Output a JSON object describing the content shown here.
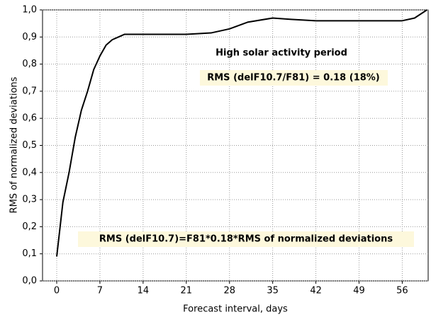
{
  "chart_data": {
    "type": "line",
    "x_label": "Forecast interval, days",
    "y_label": "RMS of normalized deviations",
    "annotations": [
      "High solar activity period",
      "RMS (delF10.7/F81) = 0.18 (18%)",
      "RMS (delF10.7)=F81*0.18*RMS of normalized deviations"
    ],
    "x": [
      0,
      1,
      2,
      3,
      4,
      5,
      6,
      7,
      8,
      9,
      10,
      11,
      14,
      21,
      25,
      28,
      31,
      35,
      38,
      42,
      49,
      56,
      58,
      60
    ],
    "values": [
      0.09,
      0.29,
      0.4,
      0.53,
      0.63,
      0.7,
      0.78,
      0.83,
      0.87,
      0.89,
      0.9,
      0.91,
      0.91,
      0.91,
      0.915,
      0.93,
      0.955,
      0.97,
      0.965,
      0.96,
      0.96,
      0.96,
      0.97,
      1.0
    ],
    "color": "#000000",
    "xlim": [
      -2.3,
      60.2
    ],
    "ylim": [
      0,
      1
    ],
    "xticks": [
      0,
      7,
      14,
      21,
      28,
      35,
      42,
      49,
      56
    ],
    "yticks": [
      {
        "value": 0,
        "label": "0,0"
      },
      {
        "value": 0.1,
        "label": "0,1"
      },
      {
        "value": 0.2,
        "label": "0,2"
      },
      {
        "value": 0.3,
        "label": "0,3"
      },
      {
        "value": 0.4,
        "label": "0,4"
      },
      {
        "value": 0.5,
        "label": "0,5"
      },
      {
        "value": 0.6,
        "label": "0,6"
      },
      {
        "value": 0.7,
        "label": "0,7"
      },
      {
        "value": 0.8,
        "label": "0,8"
      },
      {
        "value": 0.9,
        "label": "0,9"
      },
      {
        "value": 1,
        "label": "1,0"
      }
    ],
    "grid": true
  }
}
